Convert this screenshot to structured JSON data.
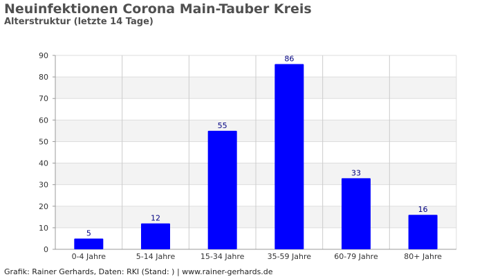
{
  "chart_data": {
    "type": "bar",
    "title": "Neuinfektionen Corona Main-Tauber Kreis",
    "subtitle": "Alterstruktur (letzte 14 Tage)",
    "xlabel": "",
    "ylabel": "",
    "categories": [
      "0-4 Jahre",
      "5-14 Jahre",
      "15-34 Jahre",
      "35-59 Jahre",
      "60-79 Jahre",
      "80+ Jahre"
    ],
    "values": [
      5,
      12,
      55,
      86,
      33,
      16
    ],
    "ylim": [
      0,
      90
    ],
    "yticks": [
      0,
      10,
      20,
      30,
      40,
      50,
      60,
      70,
      80,
      90
    ],
    "grid": true,
    "legend": "none",
    "bar_color": "#0000ff",
    "label_color": "#000080",
    "band_color": "#f3f3f3"
  },
  "footer": "Grafik: Rainer Gerhards, Daten: RKI (Stand: ) | www.rainer-gerhards.de"
}
